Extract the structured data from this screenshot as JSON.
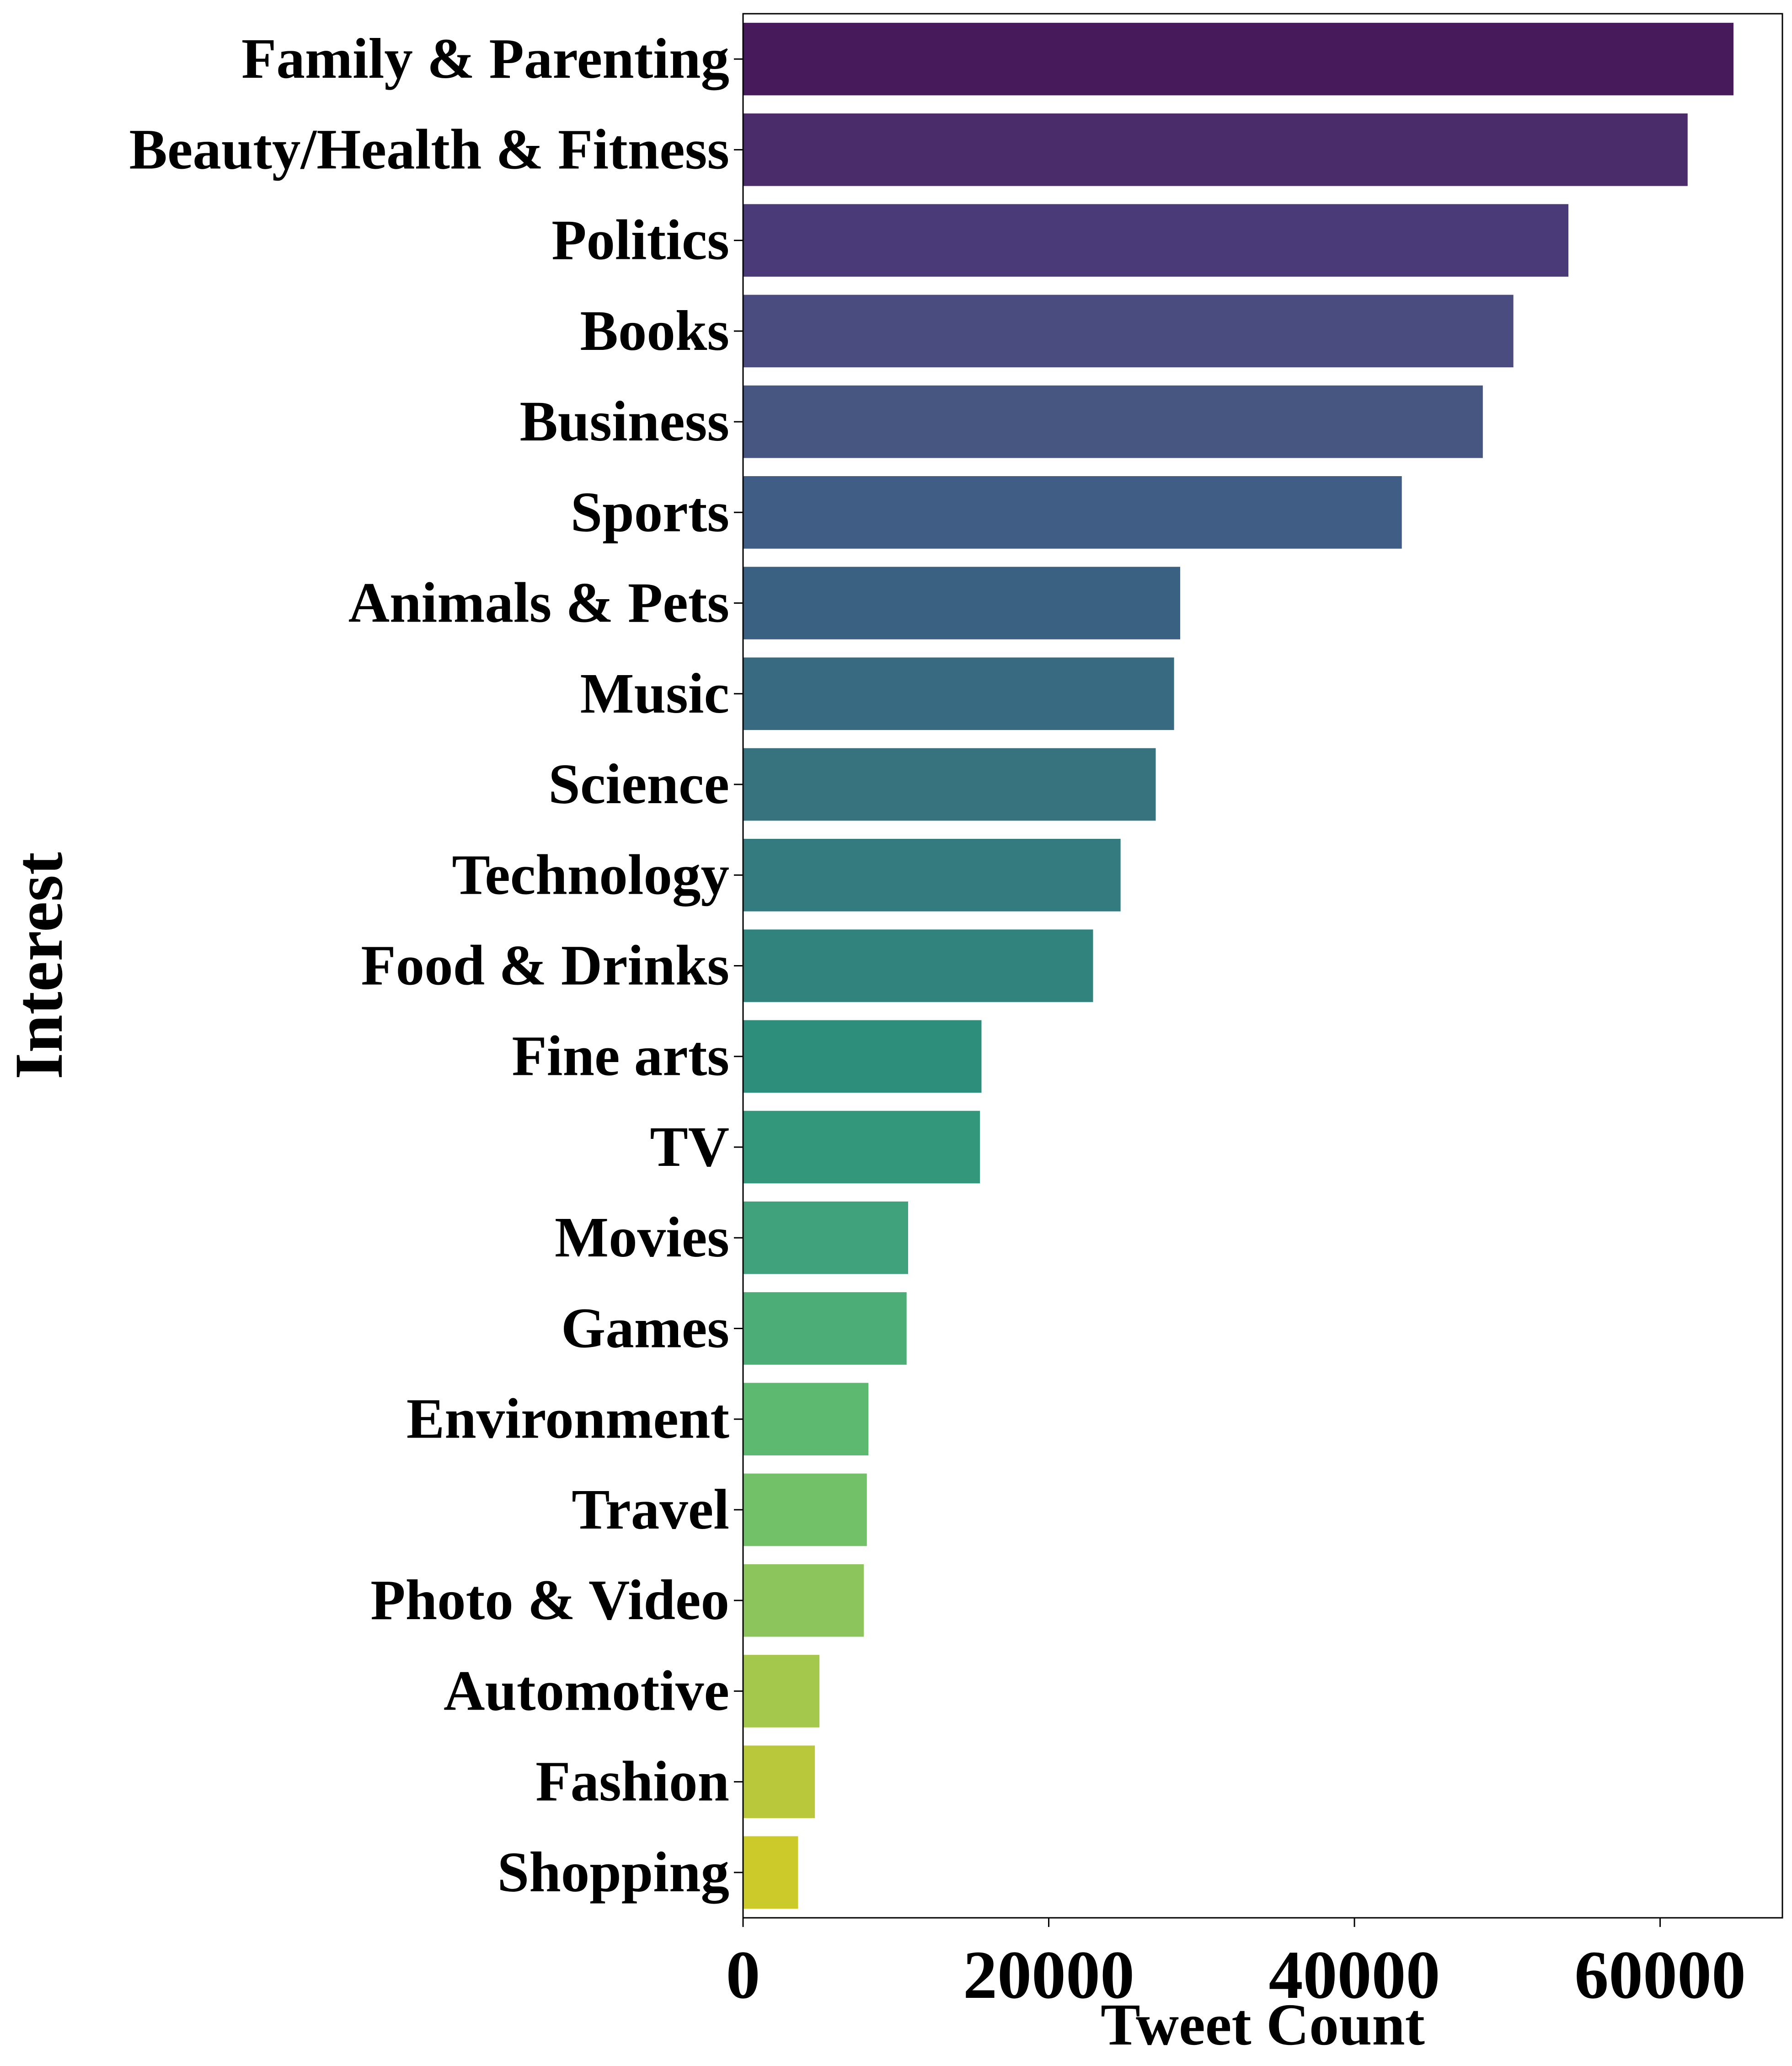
{
  "chart_data": {
    "type": "bar",
    "orientation": "horizontal",
    "title": "",
    "xlabel": "Tweet Count",
    "ylabel": "Interest",
    "xlim": [
      0,
      68000
    ],
    "xticks": [
      0,
      20000,
      40000,
      60000
    ],
    "xtick_labels": [
      "0",
      "20000",
      "40000",
      "60000"
    ],
    "grid": false,
    "legend": false,
    "categories": [
      "Family & Parenting",
      "Beauty/Health & Fitness",
      "Politics",
      "Books",
      "Business",
      "Sports",
      "Animals & Pets",
      "Music",
      "Science",
      "Technology",
      "Food & Drinks",
      "Fine arts",
      "TV",
      "Movies",
      "Games",
      "Environment",
      "Travel",
      "Photo & Video",
      "Automotive",
      "Fashion",
      "Shopping"
    ],
    "values": [
      64800,
      61800,
      54000,
      50400,
      48400,
      43100,
      28600,
      28200,
      27000,
      24700,
      22900,
      15600,
      15500,
      10800,
      10700,
      8200,
      8100,
      7900,
      5000,
      4700,
      3600
    ],
    "colors": [
      "#471a5b",
      "#4b2c6a",
      "#4b3a78",
      "#4a4b7f",
      "#465681",
      "#405e85",
      "#3b6182",
      "#386b81",
      "#37737f",
      "#337b7e",
      "#30847d",
      "#2e8e7c",
      "#33977c",
      "#3fa27c",
      "#4cad76",
      "#5db870",
      "#72c068",
      "#8bc55b",
      "#a4c84b",
      "#b8c83a",
      "#ccc92a"
    ]
  }
}
